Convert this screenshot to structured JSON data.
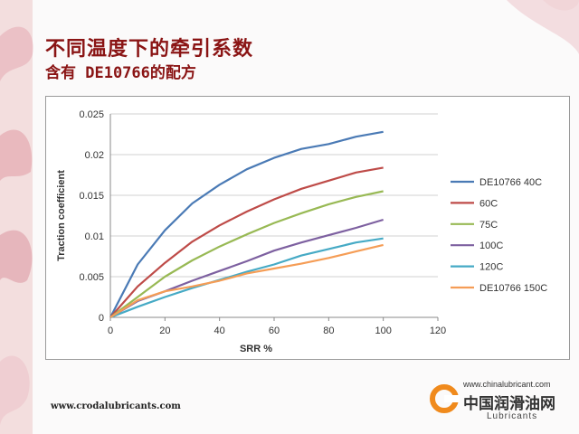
{
  "slide": {
    "title": "不同温度下的牵引系数",
    "subtitle": "含有 DE10766的配方",
    "footer_url": "www.crodalubricants.com",
    "logo": {
      "site": "www.chinalubricant.com",
      "name": "中国润滑油网",
      "sub": "Lubricants",
      "accent": "#f08a1c"
    }
  },
  "chart_data": {
    "type": "line",
    "title": "",
    "xlabel": "SRR %",
    "ylabel": "Traction coefficient",
    "xlim": [
      0,
      120
    ],
    "ylim": [
      0,
      0.025
    ],
    "xticks": [
      "0",
      "20",
      "40",
      "60",
      "80",
      "100",
      "120"
    ],
    "yticks": [
      "0",
      "0.005",
      "0.01",
      "0.015",
      "0.02",
      "0.025"
    ],
    "grid": true,
    "legend": "right",
    "x": [
      0,
      10,
      20,
      30,
      40,
      50,
      60,
      70,
      80,
      90,
      100
    ],
    "series": [
      {
        "name": "DE10766 40C",
        "color": "#4a7ab5",
        "values": [
          0,
          0.0065,
          0.0107,
          0.014,
          0.0163,
          0.0182,
          0.0196,
          0.0207,
          0.0213,
          0.0222,
          0.0228
        ]
      },
      {
        "name": "60C",
        "color": "#be4b48",
        "values": [
          0,
          0.0038,
          0.0067,
          0.0093,
          0.0113,
          0.013,
          0.0145,
          0.0158,
          0.0168,
          0.0178,
          0.0184
        ]
      },
      {
        "name": "75C",
        "color": "#98b954",
        "values": [
          0,
          0.0025,
          0.005,
          0.007,
          0.0087,
          0.0102,
          0.0116,
          0.0128,
          0.0139,
          0.0148,
          0.0155
        ]
      },
      {
        "name": "100C",
        "color": "#7d60a0",
        "values": [
          0,
          0.002,
          0.0032,
          0.0045,
          0.0057,
          0.0069,
          0.0082,
          0.0092,
          0.0101,
          0.011,
          0.012
        ]
      },
      {
        "name": "120C",
        "color": "#46aac5",
        "values": [
          0,
          0.0013,
          0.0025,
          0.0036,
          0.0046,
          0.0056,
          0.0065,
          0.0076,
          0.0084,
          0.0092,
          0.0097
        ]
      },
      {
        "name": "DE10766 150C",
        "color": "#f59d56",
        "values": [
          0,
          0.0021,
          0.0032,
          0.0038,
          0.0045,
          0.0054,
          0.006,
          0.0066,
          0.0073,
          0.0081,
          0.0089
        ]
      }
    ]
  }
}
